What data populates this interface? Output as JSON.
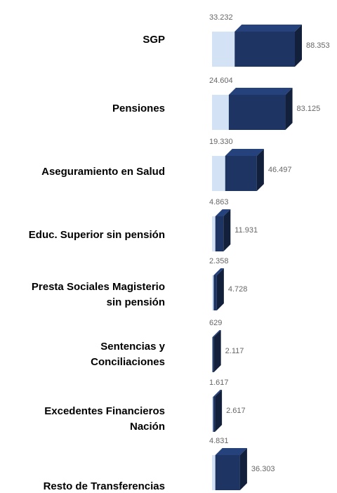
{
  "chart_data": {
    "type": "bar3d_stacked_horizontal",
    "categories": [
      "SGP",
      "Pensiones",
      "Aseguramiento en Salud",
      "Educ. Superior sin pensión",
      "Presta Sociales Magisterio\nsin pensión",
      "Sentencias y\nConciliaciones",
      "Excedentes Financieros\nNación",
      "Resto de Transferencias"
    ],
    "series": [
      {
        "color": "#d3e2f4",
        "values": [
          33232,
          24604,
          19330,
          4863,
          2358,
          629,
          1617,
          4831
        ],
        "value_labels": [
          "33.232",
          "24.604",
          "19.330",
          "4.863",
          "2.358",
          "629",
          "1.617",
          "4.831"
        ]
      },
      {
        "color": "#1e3563",
        "values": [
          88353,
          83125,
          46497,
          11931,
          4728,
          2117,
          2617,
          36303
        ],
        "value_labels": [
          "88.353",
          "83.125",
          "46.497",
          "11.931",
          "4.728",
          "2.117",
          "2.617",
          "36.303"
        ]
      }
    ]
  }
}
